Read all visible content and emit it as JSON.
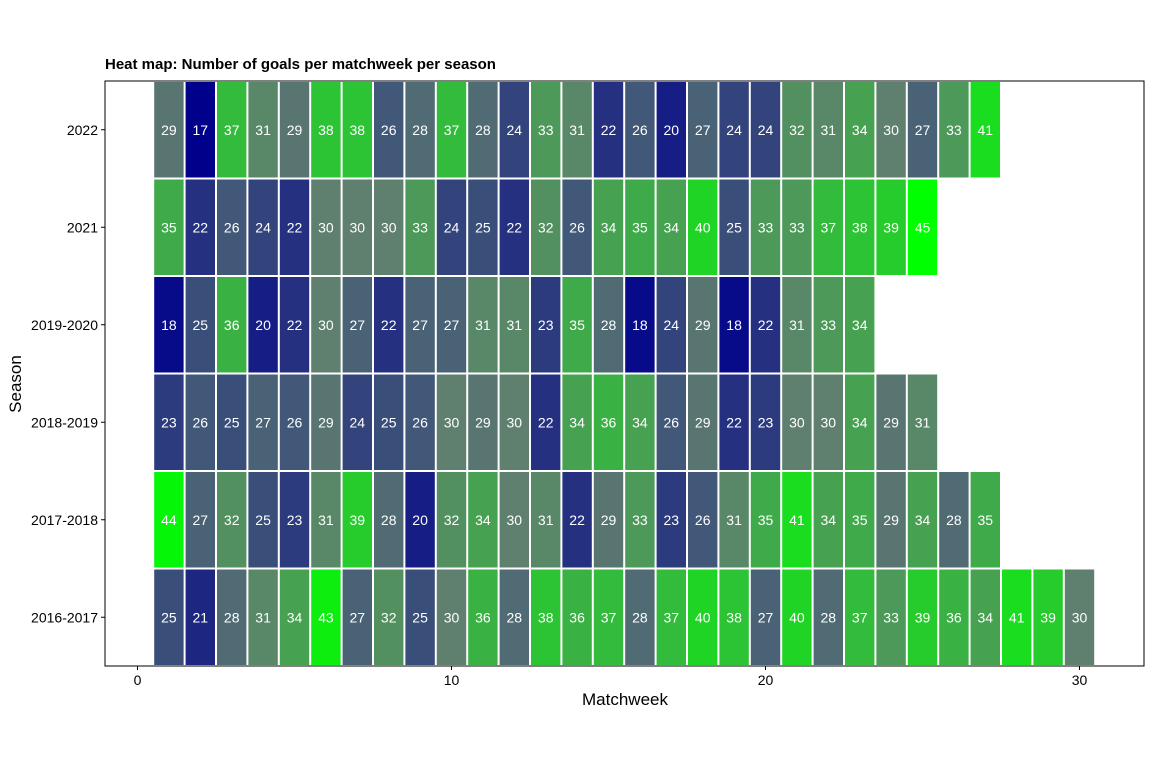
{
  "chart_data": {
    "type": "heatmap",
    "title": "Heat map: Number of goals per matchweek per season",
    "xlabel": "Matchweek",
    "ylabel": "Season",
    "xlim": [
      -1,
      31
    ],
    "x_ticks": [
      0,
      10,
      20,
      30
    ],
    "grid": false,
    "legend": "none",
    "color_scale": {
      "low": "#00008b",
      "mid": "#5f7f6f",
      "high": "#00ff00",
      "min": 17,
      "mid_value": 30,
      "max": 45
    },
    "label_color": "#ffffff",
    "seasons": [
      "2016-2017",
      "2017-2018",
      "2018-2019",
      "2019-2020",
      "2021",
      "2022"
    ],
    "series": [
      {
        "name": "2016-2017",
        "values": [
          25,
          21,
          28,
          31,
          34,
          43,
          27,
          32,
          25,
          30,
          36,
          28,
          38,
          36,
          37,
          28,
          37,
          40,
          38,
          27,
          40,
          28,
          37,
          33,
          39,
          36,
          34,
          41,
          39,
          30
        ]
      },
      {
        "name": "2017-2018",
        "values": [
          44,
          27,
          32,
          25,
          23,
          31,
          39,
          28,
          20,
          32,
          34,
          30,
          31,
          22,
          29,
          33,
          23,
          26,
          31,
          35,
          41,
          34,
          35,
          29,
          34,
          28,
          35
        ]
      },
      {
        "name": "2018-2019",
        "values": [
          23,
          26,
          25,
          27,
          26,
          29,
          24,
          25,
          26,
          30,
          29,
          30,
          22,
          34,
          36,
          34,
          26,
          29,
          22,
          23,
          30,
          30,
          34,
          29,
          31
        ]
      },
      {
        "name": "2019-2020",
        "values": [
          18,
          25,
          36,
          20,
          22,
          30,
          27,
          22,
          27,
          27,
          31,
          31,
          23,
          35,
          28,
          18,
          24,
          29,
          18,
          22,
          31,
          33,
          34
        ]
      },
      {
        "name": "2021",
        "values": [
          35,
          22,
          26,
          24,
          22,
          30,
          30,
          30,
          33,
          24,
          25,
          22,
          32,
          26,
          34,
          35,
          34,
          40,
          25,
          33,
          33,
          37,
          38,
          39,
          45
        ]
      },
      {
        "name": "2022",
        "values": [
          29,
          17,
          37,
          31,
          29,
          38,
          38,
          26,
          28,
          37,
          28,
          24,
          33,
          31,
          22,
          26,
          20,
          27,
          24,
          24,
          32,
          31,
          34,
          30,
          27,
          33,
          41
        ]
      }
    ]
  }
}
